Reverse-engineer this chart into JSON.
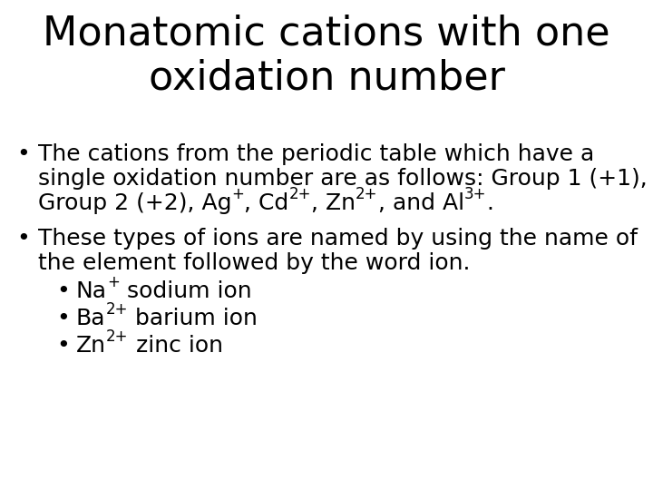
{
  "title_line1": "Monatomic cations with one",
  "title_line2": "oxidation number",
  "background_color": "#ffffff",
  "text_color": "#000000",
  "title_fontsize": 32,
  "body_fontsize": 18,
  "bullet1_l1": "The cations from the periodic table which have a",
  "bullet1_l2": "single oxidation number are as follows: Group 1 (+1),",
  "bullet1_l3_pre": "Group 2 (+2), Ag",
  "bullet1_l3_s1": "+",
  "bullet1_l3_m1": ", Cd",
  "bullet1_l3_s2": "2+",
  "bullet1_l3_m2": ", Zn",
  "bullet1_l3_s3": "2+",
  "bullet1_l3_m3": ", and Al",
  "bullet1_l3_s4": "3+",
  "bullet1_l3_end": ".",
  "bullet2_l1": "These types of ions are named by using the name of",
  "bullet2_l2": "the element followed by the word ion.",
  "sub1_base": "Na",
  "sub1_sup": "+",
  "sub1_rest": " sodium ion",
  "sub2_base": "Ba",
  "sub2_sup": "2+",
  "sub2_rest": " barium ion",
  "sub3_base": "Zn",
  "sub3_sup": "2+",
  "sub3_rest": " zinc ion"
}
